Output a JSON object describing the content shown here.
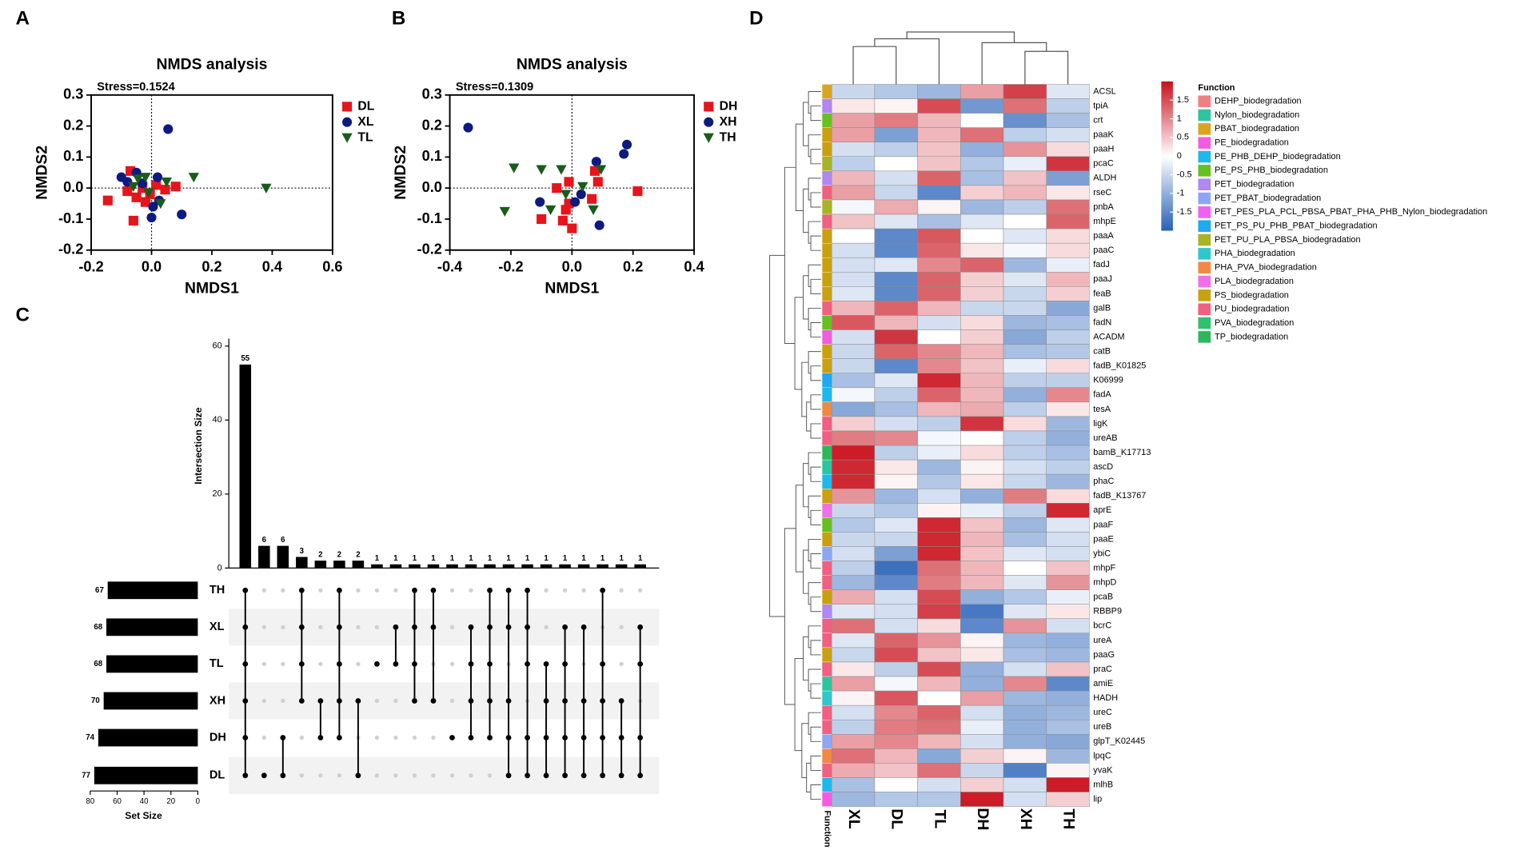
{
  "chart_data": [
    {
      "type": "scatter",
      "panel_label": "A",
      "title": "NMDS analysis",
      "annotation": "Stress=0.1524",
      "x_label": "NMDS1",
      "y_label": "NMDS2",
      "xlim": [
        -0.2,
        0.6
      ],
      "xticks": [
        -0.2,
        {
          "value": 0,
          "label": "0.0"
        },
        0.2,
        0.4,
        0.6
      ],
      "ylim": [
        -0.2,
        0.3
      ],
      "yticks": [
        -0.2,
        -0.1,
        {
          "value": 0,
          "label": "0.0"
        },
        0.1,
        0.2,
        0.3
      ],
      "zero_lines": true,
      "series": [
        {
          "name": "DL",
          "color": "#e8141c",
          "marker": "square",
          "x": [
            -0.145,
            -0.07,
            -0.08,
            -0.05,
            -0.02,
            -0.06,
            0.015,
            0.045,
            0.08,
            -0.03,
            -0.005
          ],
          "y": [
            -0.04,
            0.055,
            -0.01,
            -0.03,
            -0.045,
            -0.105,
            0.01,
            -0.005,
            0.005,
            0,
            -0.02
          ]
        },
        {
          "name": "XL",
          "color": "#0d1a80",
          "marker": "circle",
          "x": [
            0.055,
            0.1,
            -0.1,
            -0.05,
            -0.08,
            0.02,
            0.005,
            0,
            -0.03,
            0.025
          ],
          "y": [
            0.19,
            -0.085,
            0.035,
            0.05,
            0.02,
            0.035,
            -0.06,
            -0.095,
            0.015,
            -0.04
          ]
        },
        {
          "name": "TL",
          "color": "#1a5c1a",
          "marker": "triangle",
          "x": [
            0.14,
            0.38,
            -0.045,
            -0.02,
            0.05,
            0.03,
            -0.01,
            -0.06
          ],
          "y": [
            0.035,
            0,
            0.03,
            0.035,
            0.02,
            -0.05,
            -0.015,
            0.005
          ]
        }
      ]
    },
    {
      "type": "scatter",
      "panel_label": "B",
      "title": "NMDS analysis",
      "annotation": "Stress=0.1309",
      "x_label": "NMDS1",
      "y_label": "NMDS2",
      "xlim": [
        -0.4,
        0.4
      ],
      "xticks": [
        -0.4,
        -0.2,
        {
          "value": 0,
          "label": "0.0"
        },
        0.2,
        0.4
      ],
      "ylim": [
        -0.2,
        0.3
      ],
      "yticks": [
        -0.2,
        -0.1,
        {
          "value": 0,
          "label": "0.0"
        },
        0.1,
        0.2,
        0.3
      ],
      "zero_lines": true,
      "series": [
        {
          "name": "DH",
          "color": "#e8141c",
          "marker": "square",
          "x": [
            0.215,
            0.075,
            0.085,
            -0.01,
            -0.05,
            -0.01,
            -0.02,
            0,
            -0.1,
            0.065,
            -0.03
          ],
          "y": [
            -0.01,
            0.055,
            0.02,
            0.02,
            0,
            -0.05,
            -0.07,
            -0.13,
            -0.1,
            -0.035,
            -0.105
          ]
        },
        {
          "name": "XH",
          "color": "#0d1a80",
          "marker": "circle",
          "x": [
            -0.34,
            0.18,
            0.17,
            0.08,
            0.09,
            -0.105,
            0.01,
            0.03
          ],
          "y": [
            0.195,
            0.14,
            0.11,
            0.085,
            -0.12,
            -0.045,
            -0.045,
            -0.02
          ]
        },
        {
          "name": "TH",
          "color": "#1a5c1a",
          "marker": "triangle",
          "x": [
            -0.19,
            -0.1,
            -0.035,
            0.095,
            -0.22,
            -0.07,
            0.035,
            0.07,
            -0.02
          ],
          "y": [
            0.065,
            0.06,
            0.06,
            0.06,
            -0.075,
            -0.07,
            0.005,
            -0.07,
            -0.02
          ]
        }
      ]
    },
    {
      "type": "upset",
      "panel_label": "C",
      "y_label": "Intersection Size",
      "x_label": "Set Size",
      "color": "#000000",
      "sets": [
        "TH",
        "XL",
        "TL",
        "XH",
        "DH",
        "DL"
      ],
      "set_sizes": [
        67,
        68,
        68,
        70,
        74,
        77
      ],
      "set_xlim": [
        0,
        80
      ],
      "set_xticks": [
        80,
        60,
        40,
        20,
        0
      ],
      "set_axis_reversed": true,
      "intersections": [
        [
          "TH",
          "XL",
          "TL",
          "XH",
          "DH",
          "DL"
        ],
        [
          "DL"
        ],
        [
          "DH",
          "DL"
        ],
        [
          "TH",
          "XL",
          "TL",
          "XH"
        ],
        [
          "XH",
          "DH"
        ],
        [
          "TH",
          "XL",
          "TL",
          "XH",
          "DH"
        ],
        [
          "XH",
          "DL"
        ],
        [
          "TL"
        ],
        [
          "XL",
          "TL"
        ],
        [
          "TH",
          "XL",
          "TL",
          "XH"
        ],
        [
          "TH",
          "XL",
          "XH"
        ],
        [
          "DH"
        ],
        [
          "XL",
          "TL",
          "XH",
          "DH"
        ],
        [
          "TH",
          "XL",
          "TL",
          "XH",
          "DH"
        ],
        [
          "TH",
          "XL",
          "XH",
          "DH",
          "DL"
        ],
        [
          "TH",
          "XL",
          "TL",
          "DH",
          "DL"
        ],
        [
          "TL",
          "XH",
          "DH",
          "DL"
        ],
        [
          "XL",
          "TL",
          "XH",
          "DH",
          "DL"
        ],
        [
          "XL",
          "XH",
          "DH",
          "DL"
        ],
        [
          "TH",
          "TL",
          "XH",
          "DH",
          "DL"
        ],
        [
          "XH",
          "DH",
          "DL"
        ],
        [
          "XL",
          "TL",
          "DH",
          "DL"
        ]
      ],
      "values": [
        55,
        6,
        6,
        3,
        2,
        2,
        2,
        1,
        1,
        1,
        1,
        1,
        1,
        1,
        1,
        1,
        1,
        1,
        1,
        1,
        1,
        1
      ],
      "ylim": [
        0,
        62
      ],
      "yticks": [
        0,
        20,
        40,
        60
      ]
    },
    {
      "type": "heatmap",
      "panel_label": "D",
      "columns": [
        "XL",
        "DL",
        "TL",
        "DH",
        "XH",
        "TH"
      ],
      "rows": [
        "ACSL",
        "tpiA",
        "crt",
        "paaK",
        "paaH",
        "pcaC",
        "ALDH",
        "rseC",
        "pnbA",
        "mhpE",
        "paaA",
        "paaC",
        "fadJ",
        "paaJ",
        "feaB",
        "galB",
        "fadN",
        "ACADM",
        "catB",
        "fadB_K01825",
        "K06999",
        "fadA",
        "tesA",
        "ligK",
        "ureAB",
        "bamB_K17713",
        "ascD",
        "phaC",
        "fadB_K13767",
        "aprE",
        "paaF",
        "paaE",
        "ybiC",
        "mhpF",
        "mhpD",
        "pcaB",
        "RBBP9",
        "bcrC",
        "ureA",
        "paaG",
        "praC",
        "amiE",
        "HADH",
        "ureC",
        "ureB",
        "glpT_K02445",
        "lpqC",
        "yvaK",
        "mlhB",
        "lip"
      ],
      "row_functions": [
        "PBAT_biodegradation",
        "PET_biodegradation",
        "PE_PS_PHB_biodegradation",
        "PS_biodegradation",
        "PS_biodegradation",
        "PET_PU_PLA_PBSA_biodegradation",
        "PET_biodegradation",
        "PU_biodegradation",
        "PET_PU_PLA_PBSA_biodegradation",
        "PU_biodegradation",
        "PS_biodegradation",
        "PS_biodegradation",
        "PS_biodegradation",
        "PS_biodegradation",
        "PS_biodegradation",
        "PU_biodegradation",
        "PE_PS_PHB_biodegradation",
        "PE_biodegradation",
        "PS_biodegradation",
        "PS_biodegradation",
        "PET_PS_PU_PHB_PBAT_biodegradation",
        "PE_PHB_DEHP_biodegradation",
        "PHA_PVA_biodegradation",
        "PU_biodegradation",
        "PU_biodegradation",
        "TP_biodegradation",
        "Nylon_biodegradation",
        "PE_PHB_DEHP_biodegradation",
        "PS_biodegradation",
        "PLA_biodegradation",
        "PE_PS_PHB_biodegradation",
        "PS_biodegradation",
        "PET_PBAT_biodegradation",
        "PU_biodegradation",
        "PU_biodegradation",
        "PS_biodegradation",
        "PET_biodegradation",
        "PU_biodegradation",
        "PU_biodegradation",
        "PS_biodegradation",
        "PU_biodegradation",
        "Nylon_biodegradation",
        "PHA_biodegradation",
        "PU_biodegradation",
        "PU_biodegradation",
        "PET_PBAT_biodegradation",
        "PHA_PVA_biodegradation",
        "PU_biodegradation",
        "PE_PHB_DEHP_biodegradation",
        "PE_biodegradation"
      ],
      "values": [
        [
          -0.5,
          -0.7,
          -0.9,
          0.8,
          1.6,
          -0.3
        ],
        [
          0.2,
          0.1,
          1.5,
          -1.3,
          1.2,
          -0.6
        ],
        [
          0.8,
          1.1,
          0.6,
          0,
          -1.4,
          -0.8
        ],
        [
          0.8,
          -1.2,
          0.6,
          1.2,
          -0.6,
          -0.4
        ],
        [
          -0.4,
          -0.6,
          0.5,
          -1.0,
          0.9,
          0.3
        ],
        [
          -0.6,
          0,
          0.5,
          -0.7,
          -0.2,
          1.7
        ],
        [
          0.6,
          -0.4,
          1.3,
          -0.8,
          0.5,
          -1.2
        ],
        [
          0.8,
          -0.5,
          -1.5,
          0.4,
          0.6,
          0.2
        ],
        [
          -0.1,
          0.7,
          0.1,
          -0.9,
          -0.6,
          1.2
        ],
        [
          0.5,
          -0.3,
          -0.8,
          -0.3,
          0,
          1.3
        ],
        [
          0,
          -1.5,
          1.4,
          0,
          -0.3,
          0.3
        ],
        [
          -0.4,
          -1.5,
          1.3,
          0.2,
          -0.1,
          0.3
        ],
        [
          -0.4,
          -0.3,
          1.0,
          1.3,
          -0.9,
          -0.2
        ],
        [
          -0.4,
          -1.5,
          1.3,
          0.4,
          -0.3,
          0.6
        ],
        [
          -0.3,
          -1.5,
          1.3,
          0.4,
          -0.5,
          0.4
        ],
        [
          0.6,
          1.3,
          0.6,
          -0.5,
          -0.5,
          -1.1
        ],
        [
          1.4,
          0.6,
          -0.4,
          0.3,
          -0.9,
          -0.8
        ],
        [
          -0.4,
          1.7,
          0,
          0.4,
          -1.1,
          -0.6
        ],
        [
          -0.5,
          1.3,
          1.0,
          0.6,
          -0.8,
          -0.7
        ],
        [
          -0.5,
          -1.5,
          1.0,
          0.5,
          -0.2,
          0.3
        ],
        [
          -0.8,
          -0.3,
          1.8,
          0.6,
          -0.6,
          -0.6
        ],
        [
          -0.1,
          -0.6,
          1.3,
          0.6,
          -1.0,
          1.0
        ],
        [
          -1.1,
          -0.8,
          0.6,
          0.7,
          -0.6,
          0.2
        ],
        [
          0.4,
          -0.4,
          -0.6,
          1.7,
          0.3,
          -0.9
        ],
        [
          1.1,
          1.0,
          -0.1,
          0,
          -0.6,
          -1.0
        ],
        [
          1.9,
          -0.6,
          -0.2,
          0.3,
          -0.6,
          -0.8
        ],
        [
          1.8,
          0.2,
          -0.9,
          0.1,
          -0.4,
          -0.6
        ],
        [
          1.8,
          0.1,
          -0.7,
          0.2,
          -0.5,
          -0.9
        ],
        [
          0.9,
          -0.9,
          -0.4,
          -1.0,
          1.1,
          0.3
        ],
        [
          -0.5,
          -0.7,
          0.1,
          -0.2,
          -0.6,
          1.8
        ],
        [
          -0.7,
          -0.3,
          1.8,
          0.5,
          -0.9,
          -0.3
        ],
        [
          -0.5,
          -0.5,
          1.8,
          0.6,
          -0.8,
          -0.4
        ],
        [
          -0.4,
          -1.2,
          1.8,
          0.5,
          -0.3,
          -0.4
        ],
        [
          -0.6,
          -1.8,
          1.2,
          0.6,
          0,
          0.5
        ],
        [
          -0.9,
          -1.5,
          1.1,
          0.6,
          -0.3,
          0.9
        ],
        [
          0.7,
          -0.4,
          1.5,
          -1.0,
          -0.7,
          -0.2
        ],
        [
          -0.3,
          -0.4,
          1.6,
          -1.7,
          -0.3,
          0.2
        ],
        [
          1.2,
          -0.4,
          0.3,
          -1.5,
          0.9,
          -0.4
        ],
        [
          -0.3,
          1.3,
          0.9,
          0.1,
          -0.9,
          -1.0
        ],
        [
          -0.5,
          1.5,
          0.5,
          0.2,
          -0.8,
          -0.9
        ],
        [
          0.2,
          -0.6,
          1.5,
          -1.0,
          -0.4,
          0.5
        ],
        [
          0.8,
          -0.1,
          0.6,
          -1.0,
          1.0,
          -1.5
        ],
        [
          0.1,
          1.4,
          0,
          0.8,
          -0.9,
          -1.0
        ],
        [
          -0.4,
          1.0,
          1.3,
          -0.4,
          -1.0,
          -0.9
        ],
        [
          -0.6,
          1.1,
          1.2,
          -0.2,
          -1.0,
          -0.8
        ],
        [
          0.8,
          1.0,
          0.6,
          -0.4,
          -1.0,
          -1.1
        ],
        [
          1.2,
          0.6,
          -1.1,
          0.4,
          0.1,
          -0.9
        ],
        [
          0.7,
          0.5,
          1.2,
          -0.5,
          -1.6,
          0.1
        ],
        [
          -0.8,
          0,
          -0.4,
          0.4,
          -0.4,
          1.9
        ],
        [
          -0.9,
          -0.7,
          -0.7,
          1.9,
          -0.4,
          0.4
        ]
      ],
      "clim": [
        -2,
        2
      ],
      "colors": [
        "#2760b8",
        "#ffffff",
        "#c8101c"
      ],
      "colorbar_ticks": [
        1.5,
        1,
        0.5,
        0,
        -0.5,
        -1,
        -1.5
      ],
      "strip_label": "Function",
      "legend_title": "Function",
      "functions": [
        {
          "name": "DEHP_biodegradation",
          "color": "#f08080"
        },
        {
          "name": "Nylon_biodegradation",
          "color": "#2ec4a0"
        },
        {
          "name": "PBAT_biodegradation",
          "color": "#d9a520"
        },
        {
          "name": "PE_biodegradation",
          "color": "#f45ce0"
        },
        {
          "name": "PE_PHB_DEHP_biodegradation",
          "color": "#1fb8ec"
        },
        {
          "name": "PE_PS_PHB_biodegradation",
          "color": "#66c020"
        },
        {
          "name": "PET_biodegradation",
          "color": "#b088f0"
        },
        {
          "name": "PET_PBAT_biodegradation",
          "color": "#8ea6f2"
        },
        {
          "name": "PET_PES_PLA_PCL_PBSA_PBAT_PHA_PHB_Nylon_biodegradation",
          "color": "#f060f2"
        },
        {
          "name": "PET_PS_PU_PHB_PBAT_biodegradation",
          "color": "#20a8f0"
        },
        {
          "name": "PET_PU_PLA_PBSA_biodegradation",
          "color": "#a8b424"
        },
        {
          "name": "PHA_biodegradation",
          "color": "#30c6cc"
        },
        {
          "name": "PHA_PVA_biodegradation",
          "color": "#f08a40"
        },
        {
          "name": "PLA_biodegradation",
          "color": "#f070ea"
        },
        {
          "name": "PS_biodegradation",
          "color": "#c9a010"
        },
        {
          "name": "PU_biodegradation",
          "color": "#f06080"
        },
        {
          "name": "PVA_biodegradation",
          "color": "#30c070"
        },
        {
          "name": "TP_biodegradation",
          "color": "#2cb85a"
        }
      ]
    }
  ]
}
